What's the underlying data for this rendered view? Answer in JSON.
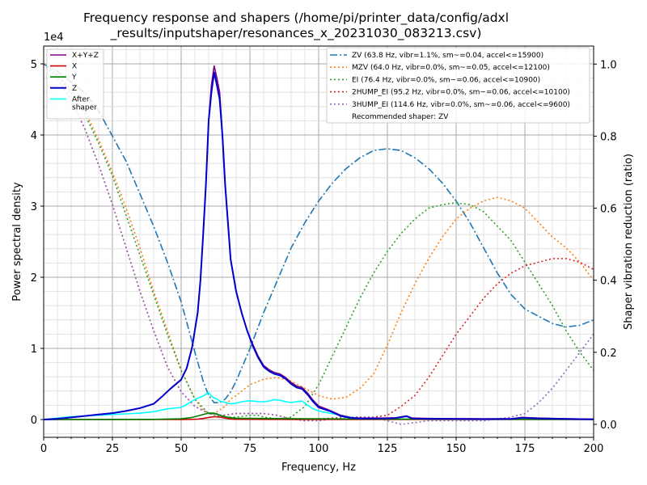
{
  "chart_data": {
    "type": "line",
    "title": "Frequency response and shapers (/home/pi/printer_data/config/adxl_results/inputshaper/resonances_x_20231030_083213.csv)",
    "title_lines": [
      "Frequency response and shapers (/home/pi/printer_data/config/adxl",
      "_results/inputshaper/resonances_x_20231030_083213.csv)"
    ],
    "xlabel": "Frequency, Hz",
    "ylabel_left": "Power spectral density",
    "ylabel_right": "Shaper vibration reduction (ratio)",
    "left_scale_label": "1e4",
    "xlim": [
      0,
      200
    ],
    "ylim_left": [
      -2500,
      52500
    ],
    "ylim_right": [
      -0.036,
      1.05
    ],
    "x_ticks": [
      0,
      25,
      50,
      75,
      100,
      125,
      150,
      175,
      200
    ],
    "y_left_ticks": [
      {
        "v": 0,
        "label": "0"
      },
      {
        "v": 10000,
        "label": "1"
      },
      {
        "v": 20000,
        "label": "2"
      },
      {
        "v": 30000,
        "label": "3"
      },
      {
        "v": 40000,
        "label": "4"
      },
      {
        "v": 50000,
        "label": "5"
      }
    ],
    "y_right_ticks": [
      {
        "v": 0,
        "label": "0.0"
      },
      {
        "v": 0.2,
        "label": "0.2"
      },
      {
        "v": 0.4,
        "label": "0.4"
      },
      {
        "v": 0.6,
        "label": "0.6"
      },
      {
        "v": 0.8,
        "label": "0.8"
      },
      {
        "v": 1.0,
        "label": "1.0"
      }
    ],
    "grid": true,
    "legend_left_position": "top-left",
    "legend_right_position": "top-right",
    "psd_series": [
      {
        "name": "X+Y+Z",
        "color": "#800080",
        "x": [
          0,
          5,
          10,
          15,
          20,
          25,
          30,
          35,
          40,
          43,
          46,
          50,
          52,
          54,
          56,
          57,
          58,
          59,
          60,
          61,
          62,
          63,
          64,
          65,
          66,
          68,
          70,
          72,
          74,
          76,
          78,
          80,
          82,
          84,
          86,
          88,
          90,
          92,
          94,
          96,
          98,
          100,
          104,
          108,
          112,
          116,
          120,
          124,
          128,
          132,
          134,
          140,
          150,
          160,
          170,
          174,
          180,
          190,
          200
        ],
        "y": [
          0,
          100,
          300,
          500,
          700,
          900,
          1200,
          1600,
          2200,
          3200,
          4300,
          5600,
          7200,
          10200,
          15000,
          19500,
          26000,
          33000,
          42000,
          47000,
          49700,
          48000,
          46000,
          40000,
          33000,
          22500,
          18000,
          15000,
          12500,
          10600,
          8900,
          7600,
          7000,
          6600,
          6400,
          5900,
          5200,
          4700,
          4500,
          3700,
          2700,
          1900,
          1300,
          600,
          250,
          200,
          200,
          200,
          250,
          500,
          200,
          150,
          120,
          100,
          100,
          300,
          200,
          100,
          50
        ]
      },
      {
        "name": "X",
        "color": "#cc0000",
        "x": [
          0,
          40,
          50,
          54,
          56,
          58,
          60,
          62,
          64,
          66,
          68,
          70,
          80,
          90,
          100,
          110,
          200
        ],
        "y": [
          0,
          0,
          0,
          20,
          60,
          150,
          300,
          400,
          350,
          200,
          80,
          30,
          20,
          10,
          5,
          0,
          0
        ]
      },
      {
        "name": "Y",
        "color": "#008000",
        "x": [
          0,
          40,
          50,
          54,
          56,
          58,
          60,
          62,
          63,
          64,
          66,
          68,
          70,
          80,
          90,
          100,
          110,
          120,
          130,
          200
        ],
        "y": [
          0,
          20,
          100,
          300,
          500,
          700,
          900,
          900,
          800,
          600,
          400,
          250,
          180,
          150,
          120,
          100,
          80,
          60,
          40,
          20
        ]
      },
      {
        "name": "Z",
        "color": "#0000cc",
        "x": [
          0,
          5,
          10,
          15,
          20,
          25,
          30,
          35,
          40,
          43,
          46,
          50,
          52,
          54,
          56,
          57,
          58,
          59,
          60,
          61,
          62,
          63,
          64,
          65,
          66,
          68,
          70,
          72,
          74,
          76,
          78,
          80,
          82,
          84,
          86,
          88,
          90,
          92,
          94,
          96,
          98,
          100,
          104,
          108,
          112,
          116,
          120,
          124,
          128,
          132,
          134,
          140,
          150,
          160,
          170,
          174,
          180,
          190,
          200
        ],
        "y": [
          0,
          100,
          300,
          500,
          700,
          900,
          1200,
          1600,
          2200,
          3200,
          4300,
          5600,
          7200,
          10200,
          15000,
          19500,
          26000,
          33000,
          42000,
          46000,
          48800,
          47000,
          45000,
          40000,
          33000,
          22500,
          18000,
          15000,
          12500,
          10400,
          8700,
          7400,
          6800,
          6400,
          6200,
          5700,
          5000,
          4500,
          4300,
          3500,
          2500,
          1700,
          1200,
          500,
          200,
          150,
          150,
          150,
          200,
          450,
          150,
          100,
          80,
          60,
          80,
          250,
          150,
          80,
          30
        ]
      },
      {
        "name": "After\nshaper",
        "color": "#00ffff",
        "x": [
          0,
          5,
          10,
          15,
          20,
          25,
          30,
          35,
          40,
          45,
          50,
          52,
          54,
          56,
          58,
          60,
          61,
          62,
          63,
          64,
          66,
          68,
          70,
          72,
          74,
          76,
          78,
          80,
          82,
          84,
          86,
          88,
          90,
          92,
          94,
          96,
          98,
          100,
          104,
          108,
          112,
          116,
          120,
          124,
          128,
          132,
          140,
          150,
          160,
          170,
          180,
          190,
          200
        ],
        "y": [
          0,
          200,
          400,
          500,
          600,
          700,
          800,
          900,
          1100,
          1500,
          1700,
          2100,
          2600,
          3000,
          3300,
          3800,
          3300,
          3000,
          2900,
          2600,
          2400,
          2200,
          2300,
          2500,
          2600,
          2600,
          2500,
          2500,
          2600,
          2800,
          2700,
          2500,
          2400,
          2500,
          2600,
          2000,
          1500,
          1200,
          900,
          600,
          300,
          150,
          100,
          80,
          60,
          50,
          40,
          30,
          20,
          20,
          20,
          20,
          20
        ]
      }
    ],
    "shapers": [
      {
        "name": "ZV (63.8 Hz, vibr=1.1%, sm~=0.04, accel<=15900)",
        "color": "#1f77b4",
        "dash": "9,3,2,3",
        "x": [
          0,
          5,
          10,
          15,
          20,
          25,
          30,
          35,
          40,
          45,
          50,
          55,
          58,
          60,
          62,
          64,
          66,
          68,
          70,
          75,
          80,
          85,
          90,
          95,
          100,
          105,
          110,
          115,
          120,
          125,
          130,
          135,
          140,
          145,
          150,
          155,
          160,
          165,
          170,
          175,
          180,
          185,
          190,
          195,
          200
        ],
        "y": [
          1.0,
          0.98,
          0.95,
          0.92,
          0.87,
          0.8,
          0.73,
          0.64,
          0.55,
          0.45,
          0.34,
          0.2,
          0.12,
          0.08,
          0.06,
          0.06,
          0.07,
          0.09,
          0.12,
          0.21,
          0.31,
          0.4,
          0.49,
          0.56,
          0.62,
          0.67,
          0.71,
          0.74,
          0.76,
          0.765,
          0.76,
          0.74,
          0.71,
          0.67,
          0.62,
          0.56,
          0.49,
          0.42,
          0.36,
          0.32,
          0.3,
          0.28,
          0.27,
          0.275,
          0.29
        ]
      },
      {
        "name": "MZV (64.0 Hz, vibr=0.0%, sm~=0.05, accel<=12100)",
        "color": "#ff7f0e",
        "dash": "2,3",
        "x": [
          0,
          5,
          10,
          15,
          20,
          25,
          30,
          35,
          40,
          45,
          50,
          55,
          58,
          60,
          62,
          64,
          66,
          68,
          70,
          75,
          80,
          85,
          90,
          95,
          100,
          105,
          110,
          115,
          120,
          125,
          130,
          135,
          140,
          145,
          150,
          155,
          160,
          165,
          170,
          175,
          180,
          185,
          190,
          195,
          200
        ],
        "y": [
          1.0,
          0.97,
          0.93,
          0.87,
          0.79,
          0.7,
          0.6,
          0.49,
          0.37,
          0.26,
          0.15,
          0.07,
          0.04,
          0.03,
          0.03,
          0.04,
          0.05,
          0.07,
          0.08,
          0.11,
          0.125,
          0.13,
          0.12,
          0.1,
          0.08,
          0.07,
          0.075,
          0.1,
          0.14,
          0.22,
          0.31,
          0.39,
          0.46,
          0.52,
          0.57,
          0.6,
          0.62,
          0.63,
          0.62,
          0.6,
          0.56,
          0.52,
          0.49,
          0.45,
          0.4
        ]
      },
      {
        "name": "EI (76.4 Hz, vibr=0.0%, sm~=0.06, accel<=10900)",
        "color": "#2ca02c",
        "dash": "2,3",
        "x": [
          0,
          5,
          10,
          15,
          20,
          25,
          30,
          35,
          40,
          45,
          50,
          55,
          60,
          65,
          70,
          75,
          78,
          80,
          85,
          90,
          95,
          100,
          105,
          110,
          115,
          120,
          125,
          130,
          135,
          140,
          145,
          150,
          155,
          160,
          165,
          170,
          175,
          180,
          185,
          190,
          195,
          200
        ],
        "y": [
          1.0,
          0.97,
          0.92,
          0.86,
          0.78,
          0.69,
          0.58,
          0.47,
          0.36,
          0.25,
          0.15,
          0.07,
          0.03,
          0.02,
          0.02,
          0.025,
          0.025,
          0.02,
          0.015,
          0.02,
          0.05,
          0.11,
          0.19,
          0.27,
          0.35,
          0.42,
          0.48,
          0.53,
          0.57,
          0.6,
          0.61,
          0.615,
          0.61,
          0.59,
          0.55,
          0.51,
          0.45,
          0.39,
          0.33,
          0.26,
          0.2,
          0.15
        ]
      },
      {
        "name": "2HUMP_EI (95.2 Hz, vibr=0.0%, sm~=0.06, accel<=10100)",
        "color": "#d62728",
        "dash": "2,3",
        "x": [
          0,
          5,
          10,
          15,
          20,
          25,
          30,
          35,
          40,
          45,
          50,
          55,
          60,
          65,
          70,
          75,
          80,
          85,
          90,
          95,
          100,
          110,
          120,
          125,
          130,
          135,
          140,
          145,
          150,
          155,
          160,
          165,
          170,
          175,
          180,
          185,
          190,
          195,
          200
        ],
        "y": [
          1.0,
          0.96,
          0.9,
          0.82,
          0.72,
          0.61,
          0.49,
          0.37,
          0.26,
          0.16,
          0.09,
          0.05,
          0.03,
          0.025,
          0.03,
          0.03,
          0.03,
          0.025,
          0.015,
          0.01,
          0.015,
          0.02,
          0.02,
          0.025,
          0.05,
          0.08,
          0.13,
          0.19,
          0.25,
          0.3,
          0.35,
          0.39,
          0.42,
          0.44,
          0.45,
          0.46,
          0.46,
          0.45,
          0.43
        ]
      },
      {
        "name": "3HUMP_EI (114.6 Hz, vibr=0.0%, sm~=0.06, accel<=9600)",
        "color": "#9467bd",
        "dash": "2,3",
        "x": [
          0,
          5,
          10,
          15,
          20,
          25,
          30,
          35,
          40,
          45,
          50,
          55,
          60,
          65,
          70,
          75,
          80,
          85,
          90,
          95,
          100,
          110,
          120,
          130,
          140,
          150,
          160,
          170,
          175,
          180,
          185,
          190,
          195,
          200
        ],
        "y": [
          1.0,
          0.96,
          0.9,
          0.82,
          0.72,
          0.61,
          0.49,
          0.37,
          0.26,
          0.16,
          0.09,
          0.05,
          0.03,
          0.025,
          0.03,
          0.03,
          0.03,
          0.025,
          0.015,
          0.01,
          0.01,
          0.02,
          0.02,
          0.0,
          0.01,
          0.01,
          0.01,
          0.02,
          0.03,
          0.06,
          0.1,
          0.15,
          0.2,
          0.25
        ]
      }
    ],
    "recommended_text": "Recommended shaper: ZV"
  }
}
